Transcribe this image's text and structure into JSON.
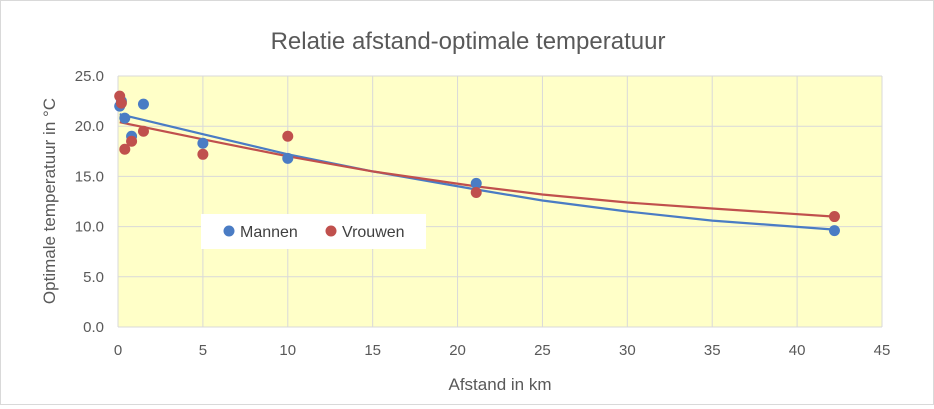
{
  "chart_data": {
    "type": "scatter",
    "title": "Relatie afstand-optimale temperatuur",
    "xlabel": "Afstand in km",
    "ylabel": "Optimale temperatuur in °C",
    "xlim": [
      0,
      45
    ],
    "ylim": [
      0,
      25
    ],
    "xticks": [
      0,
      5,
      10,
      15,
      20,
      25,
      30,
      35,
      40,
      45
    ],
    "xtick_labels": [
      "0",
      "5",
      "10",
      "15",
      "20",
      "25",
      "30",
      "35",
      "40",
      "45"
    ],
    "yticks": [
      0,
      5,
      10,
      15,
      20,
      25
    ],
    "ytick_labels": [
      "0.0",
      "5.0",
      "10.0",
      "15.0",
      "20.0",
      "25.0"
    ],
    "grid": true,
    "plot_background": "#ffffc8",
    "grid_color": "#d9d9d9",
    "legend_position": "left-inside",
    "series": [
      {
        "name": "Mannen",
        "color": "#4a7cc4",
        "points": [
          {
            "x": 0.1,
            "y": 22.0
          },
          {
            "x": 0.2,
            "y": 22.5
          },
          {
            "x": 0.4,
            "y": 20.8
          },
          {
            "x": 0.8,
            "y": 19.0
          },
          {
            "x": 1.5,
            "y": 22.2
          },
          {
            "x": 5.0,
            "y": 18.3
          },
          {
            "x": 10.0,
            "y": 16.8
          },
          {
            "x": 21.1,
            "y": 14.3
          },
          {
            "x": 42.2,
            "y": 9.6
          }
        ],
        "trendline": {
          "type": "polynomial",
          "points": [
            [
              0.1,
              21.2
            ],
            [
              5,
              19.2
            ],
            [
              10,
              17.2
            ],
            [
              15,
              15.5
            ],
            [
              21.1,
              13.7
            ],
            [
              25,
              12.6
            ],
            [
              30,
              11.5
            ],
            [
              35,
              10.6
            ],
            [
              42.2,
              9.7
            ]
          ]
        }
      },
      {
        "name": "Vrouwen",
        "color": "#c0504d",
        "points": [
          {
            "x": 0.1,
            "y": 23.0
          },
          {
            "x": 0.2,
            "y": 22.3
          },
          {
            "x": 0.4,
            "y": 17.7
          },
          {
            "x": 0.8,
            "y": 18.5
          },
          {
            "x": 1.5,
            "y": 19.5
          },
          {
            "x": 5.0,
            "y": 17.2
          },
          {
            "x": 10.0,
            "y": 19.0
          },
          {
            "x": 21.1,
            "y": 13.4
          },
          {
            "x": 42.2,
            "y": 11.0
          }
        ],
        "trendline": {
          "type": "polynomial",
          "points": [
            [
              0.1,
              20.4
            ],
            [
              5,
              18.7
            ],
            [
              10,
              17.0
            ],
            [
              15,
              15.5
            ],
            [
              21.1,
              14.0
            ],
            [
              25,
              13.2
            ],
            [
              30,
              12.4
            ],
            [
              35,
              11.8
            ],
            [
              42.2,
              11.0
            ]
          ]
        }
      }
    ]
  }
}
